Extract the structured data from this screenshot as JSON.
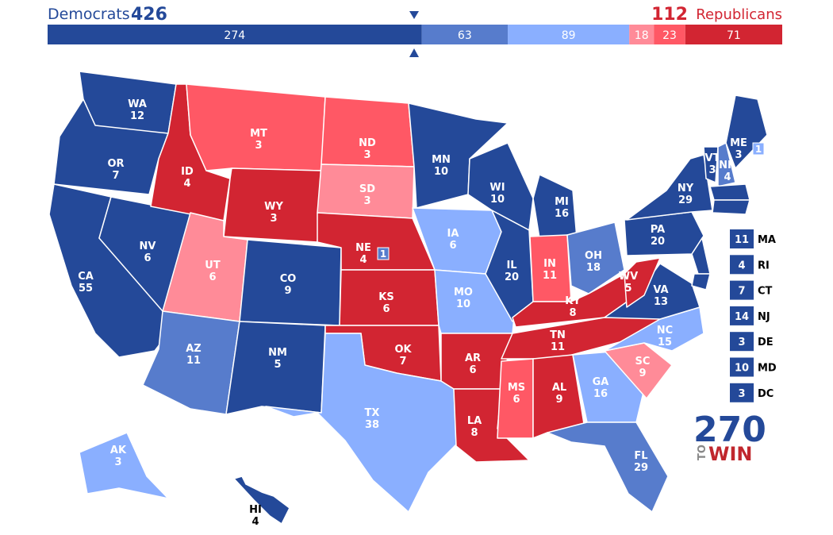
{
  "header": {
    "dem_label": "Democrats",
    "dem_total": 426,
    "rep_total": 112,
    "rep_label": "Republicans"
  },
  "ratings": [
    "#244999",
    "#577ccc",
    "#8aafff",
    "#ff8b98",
    "#ff5865",
    "#d22532"
  ],
  "bar": [
    {
      "value": 274,
      "rating": 0
    },
    {
      "value": 63,
      "rating": 1
    },
    {
      "value": 89,
      "rating": 2
    },
    {
      "value": 18,
      "rating": 3
    },
    {
      "value": 23,
      "rating": 4
    },
    {
      "value": 71,
      "rating": 5
    }
  ],
  "states": [
    {
      "abbr": "WA",
      "ev": 12,
      "rating": 0
    },
    {
      "abbr": "OR",
      "ev": 7,
      "rating": 0
    },
    {
      "abbr": "CA",
      "ev": 55,
      "rating": 0
    },
    {
      "abbr": "NV",
      "ev": 6,
      "rating": 0
    },
    {
      "abbr": "ID",
      "ev": 4,
      "rating": 5
    },
    {
      "abbr": "MT",
      "ev": 3,
      "rating": 4
    },
    {
      "abbr": "WY",
      "ev": 3,
      "rating": 5
    },
    {
      "abbr": "UT",
      "ev": 6,
      "rating": 3
    },
    {
      "abbr": "CO",
      "ev": 9,
      "rating": 0
    },
    {
      "abbr": "AZ",
      "ev": 11,
      "rating": 1
    },
    {
      "abbr": "NM",
      "ev": 5,
      "rating": 0
    },
    {
      "abbr": "ND",
      "ev": 3,
      "rating": 4
    },
    {
      "abbr": "SD",
      "ev": 3,
      "rating": 3
    },
    {
      "abbr": "NE",
      "ev": 4,
      "rating": 5,
      "extra": {
        "ev": 1,
        "rating": 1
      }
    },
    {
      "abbr": "KS",
      "ev": 6,
      "rating": 5
    },
    {
      "abbr": "OK",
      "ev": 7,
      "rating": 5
    },
    {
      "abbr": "TX",
      "ev": 38,
      "rating": 2
    },
    {
      "abbr": "MN",
      "ev": 10,
      "rating": 0
    },
    {
      "abbr": "IA",
      "ev": 6,
      "rating": 2
    },
    {
      "abbr": "MO",
      "ev": 10,
      "rating": 2
    },
    {
      "abbr": "AR",
      "ev": 6,
      "rating": 5
    },
    {
      "abbr": "LA",
      "ev": 8,
      "rating": 5
    },
    {
      "abbr": "WI",
      "ev": 10,
      "rating": 0
    },
    {
      "abbr": "IL",
      "ev": 20,
      "rating": 0
    },
    {
      "abbr": "MI",
      "ev": 16,
      "rating": 0
    },
    {
      "abbr": "IN",
      "ev": 11,
      "rating": 4
    },
    {
      "abbr": "OH",
      "ev": 18,
      "rating": 1
    },
    {
      "abbr": "KY",
      "ev": 8,
      "rating": 5
    },
    {
      "abbr": "TN",
      "ev": 11,
      "rating": 5
    },
    {
      "abbr": "MS",
      "ev": 6,
      "rating": 4
    },
    {
      "abbr": "AL",
      "ev": 9,
      "rating": 5
    },
    {
      "abbr": "GA",
      "ev": 16,
      "rating": 2
    },
    {
      "abbr": "FL",
      "ev": 29,
      "rating": 1
    },
    {
      "abbr": "SC",
      "ev": 9,
      "rating": 3
    },
    {
      "abbr": "NC",
      "ev": 15,
      "rating": 2
    },
    {
      "abbr": "VA",
      "ev": 13,
      "rating": 0
    },
    {
      "abbr": "WV",
      "ev": 5,
      "rating": 5
    },
    {
      "abbr": "PA",
      "ev": 20,
      "rating": 0
    },
    {
      "abbr": "NY",
      "ev": 29,
      "rating": 0
    },
    {
      "abbr": "VT",
      "ev": 3,
      "rating": 0
    },
    {
      "abbr": "NH",
      "ev": 4,
      "rating": 1
    },
    {
      "abbr": "ME",
      "ev": 3,
      "rating": 0,
      "extra": {
        "ev": 1,
        "rating": 2
      }
    },
    {
      "abbr": "AK",
      "ev": 3,
      "rating": 2
    },
    {
      "abbr": "HI",
      "ev": 4,
      "rating": 0
    }
  ],
  "small_states": [
    {
      "abbr": "MA",
      "ev": 11,
      "rating": 0
    },
    {
      "abbr": "RI",
      "ev": 4,
      "rating": 0
    },
    {
      "abbr": "CT",
      "ev": 7,
      "rating": 0
    },
    {
      "abbr": "NJ",
      "ev": 14,
      "rating": 0
    },
    {
      "abbr": "DE",
      "ev": 3,
      "rating": 0
    },
    {
      "abbr": "MD",
      "ev": 10,
      "rating": 0
    },
    {
      "abbr": "DC",
      "ev": 3,
      "rating": 0
    }
  ],
  "logo": {
    "number": "270",
    "to": "TO",
    "win": "WIN"
  }
}
